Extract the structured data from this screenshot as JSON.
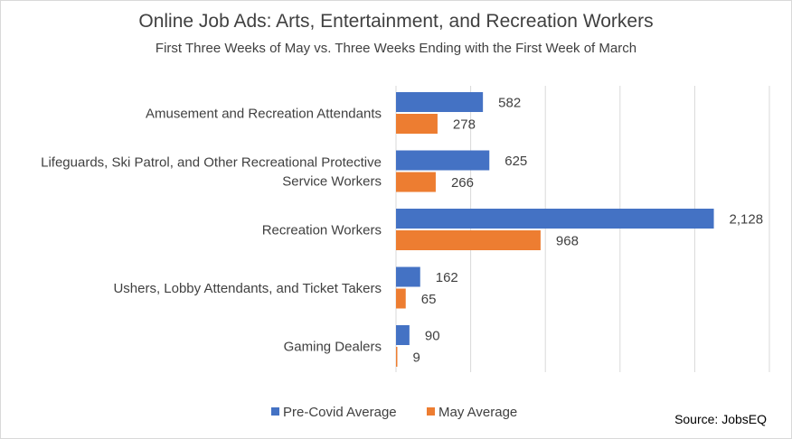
{
  "chart_data": {
    "type": "bar",
    "orientation": "horizontal",
    "title": "Online Job Ads: Arts, Entertainment, and Recreation Workers",
    "subtitle": "First Three Weeks of May vs. Three Weeks Ending with the First Week of March",
    "categories": [
      [
        "Amusement and Recreation Attendants"
      ],
      [
        "Lifeguards, Ski Patrol, and Other Recreational Protective",
        "Service Workers"
      ],
      [
        "Recreation Workers"
      ],
      [
        "Ushers, Lobby Attendants, and Ticket Takers"
      ],
      [
        "Gaming Dealers"
      ]
    ],
    "series": [
      {
        "name": "Pre-Covid Average",
        "color": "#4472c4",
        "values": [
          582,
          625,
          2128,
          162,
          90
        ],
        "labels": [
          "582",
          "625",
          "2,128",
          "162",
          "90"
        ]
      },
      {
        "name": "May Average",
        "color": "#ed7d31",
        "values": [
          278,
          266,
          968,
          65,
          9
        ],
        "labels": [
          "278",
          "266",
          "968",
          "65",
          "9"
        ]
      }
    ],
    "xlim": [
      0,
      2500
    ],
    "x_gridlines": [
      0,
      500,
      1000,
      1500,
      2000,
      2500
    ],
    "grid": true,
    "legend_position": "bottom",
    "source": "Source: JobsEQ"
  }
}
